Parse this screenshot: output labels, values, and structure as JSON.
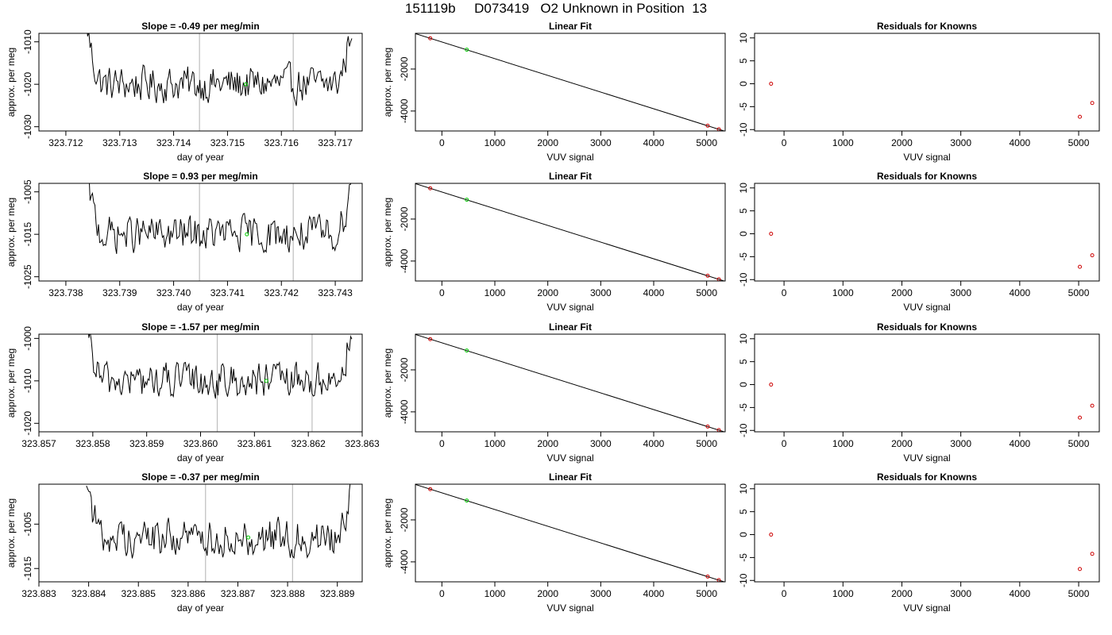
{
  "page_title": "151119b     D073419   O2 Unknown in Position  13",
  "chart_data": [
    {
      "type": "line",
      "title": "Slope =  -0.49  per meg/min",
      "xlabel": "day of year",
      "ylabel": "approx. per meg",
      "xlim": [
        323.7115,
        323.7175
      ],
      "ylim": [
        -1031,
        -1008
      ],
      "xticks": [
        "323.712",
        "323.713",
        "323.714",
        "323.715",
        "323.716",
        "323.717"
      ],
      "yticks": [
        "-1010",
        "-1020",
        "-1030"
      ],
      "vlines": [
        323.71448,
        323.71622
      ],
      "highlight_point": {
        "x": 323.71534,
        "y": -1020
      },
      "color_line": "#000000",
      "color_point": "#00cc00",
      "color_vline": "#bebebe"
    },
    {
      "type": "scatter",
      "title": "Linear Fit",
      "xlabel": "VUV signal",
      "ylabel": "approx. per meg",
      "xlim": [
        -500,
        5350
      ],
      "ylim": [
        -4950,
        -300
      ],
      "xticks": [
        "0",
        "1000",
        "2000",
        "3000",
        "4000",
        "5000"
      ],
      "yticks": [
        "-2000",
        "-4000"
      ],
      "points": [
        {
          "x": -220,
          "y": -537
        },
        {
          "x": 5020,
          "y": -4700
        },
        {
          "x": 5230,
          "y": -4870
        }
      ],
      "unknown_point": {
        "x": 470,
        "y": -1080
      },
      "fit": {
        "slope": -0.7953,
        "intercept": -712
      },
      "color_known": "#cc0000",
      "color_unknown": "#00cc00"
    },
    {
      "type": "scatter",
      "title": "Residuals for Knowns",
      "xlabel": "VUV signal",
      "ylabel": "",
      "xlim": [
        -500,
        5350
      ],
      "ylim": [
        -10.3,
        11
      ],
      "xticks": [
        "0",
        "1000",
        "2000",
        "3000",
        "4000",
        "5000"
      ],
      "yticks": [
        "10",
        "5",
        "0",
        "-5",
        "-10"
      ],
      "points": [
        {
          "x": -220,
          "y": 0
        },
        {
          "x": 5020,
          "y": -7.2
        },
        {
          "x": 5230,
          "y": -4.2
        }
      ],
      "color_known": "#cc0000"
    },
    {
      "type": "line",
      "title": "Slope =  0.93  per meg/min",
      "xlabel": "day of year",
      "ylabel": "approx. per meg",
      "xlim": [
        323.7375,
        323.7435
      ],
      "ylim": [
        -1026,
        -1003
      ],
      "xticks": [
        "323.738",
        "323.739",
        "323.740",
        "323.741",
        "323.742",
        "323.743"
      ],
      "yticks": [
        "-1005",
        "-1015",
        "-1025"
      ],
      "vlines": [
        323.74048,
        323.74222
      ],
      "highlight_point": {
        "x": 323.74136,
        "y": -1015
      },
      "color_line": "#000000",
      "color_point": "#00cc00",
      "color_vline": "#bebebe"
    },
    {
      "type": "scatter",
      "title": "Linear Fit",
      "xlabel": "VUV signal",
      "ylabel": "approx. per meg",
      "xlim": [
        -500,
        5350
      ],
      "ylim": [
        -4950,
        -300
      ],
      "xticks": [
        "0",
        "1000",
        "2000",
        "3000",
        "4000",
        "5000"
      ],
      "yticks": [
        "-2000",
        "-4000"
      ],
      "points": [
        {
          "x": -220,
          "y": -537
        },
        {
          "x": 5020,
          "y": -4700
        },
        {
          "x": 5230,
          "y": -4870
        }
      ],
      "unknown_point": {
        "x": 470,
        "y": -1080
      },
      "fit": {
        "slope": -0.7953,
        "intercept": -712
      },
      "color_known": "#cc0000",
      "color_unknown": "#00cc00"
    },
    {
      "type": "scatter",
      "title": "Residuals for Knowns",
      "xlabel": "VUV signal",
      "ylabel": "",
      "xlim": [
        -500,
        5350
      ],
      "ylim": [
        -10.3,
        11
      ],
      "xticks": [
        "0",
        "1000",
        "2000",
        "3000",
        "4000",
        "5000"
      ],
      "yticks": [
        "10",
        "5",
        "0",
        "-5",
        "-10"
      ],
      "points": [
        {
          "x": -220,
          "y": 0
        },
        {
          "x": 5020,
          "y": -7.2
        },
        {
          "x": 5230,
          "y": -4.7
        }
      ],
      "color_known": "#cc0000"
    },
    {
      "type": "line",
      "title": "Slope =  -1.57  per meg/min",
      "xlabel": "day of year",
      "ylabel": "approx. per meg",
      "xlim": [
        323.857,
        323.863
      ],
      "ylim": [
        -1022,
        -999
      ],
      "xticks": [
        "323.857",
        "323.858",
        "323.859",
        "323.860",
        "323.861",
        "323.862",
        "323.863"
      ],
      "yticks": [
        "-1000",
        "-1010",
        "-1020"
      ],
      "vlines": [
        323.86031,
        323.86207
      ],
      "highlight_point": {
        "x": 323.86122,
        "y": -1010
      },
      "color_line": "#000000",
      "color_point": "#00cc00",
      "color_vline": "#bebebe"
    },
    {
      "type": "scatter",
      "title": "Linear Fit",
      "xlabel": "VUV signal",
      "ylabel": "approx. per meg",
      "xlim": [
        -500,
        5350
      ],
      "ylim": [
        -4950,
        -300
      ],
      "xticks": [
        "0",
        "1000",
        "2000",
        "3000",
        "4000",
        "5000"
      ],
      "yticks": [
        "-2000",
        "-4000"
      ],
      "points": [
        {
          "x": -220,
          "y": -537
        },
        {
          "x": 5020,
          "y": -4700
        },
        {
          "x": 5230,
          "y": -4870
        }
      ],
      "unknown_point": {
        "x": 470,
        "y": -1080
      },
      "fit": {
        "slope": -0.7953,
        "intercept": -712
      },
      "color_known": "#cc0000",
      "color_unknown": "#00cc00"
    },
    {
      "type": "scatter",
      "title": "Residuals for Knowns",
      "xlabel": "VUV signal",
      "ylabel": "",
      "xlim": [
        -500,
        5350
      ],
      "ylim": [
        -10.3,
        11
      ],
      "xticks": [
        "0",
        "1000",
        "2000",
        "3000",
        "4000",
        "5000"
      ],
      "yticks": [
        "10",
        "5",
        "0",
        "-5",
        "-10"
      ],
      "points": [
        {
          "x": -220,
          "y": 0
        },
        {
          "x": 5020,
          "y": -7.2
        },
        {
          "x": 5230,
          "y": -4.6
        }
      ],
      "color_known": "#cc0000"
    },
    {
      "type": "line",
      "title": "Slope =  -0.37  per meg/min",
      "xlabel": "day of year",
      "ylabel": "approx. per meg",
      "xlim": [
        323.883,
        323.8895
      ],
      "ylim": [
        -1018,
        -996
      ],
      "xticks": [
        "323.883",
        "323.884",
        "323.885",
        "323.886",
        "323.887",
        "323.888",
        "323.889"
      ],
      "yticks": [
        "-1005",
        "-1015"
      ],
      "vlines": [
        323.88635,
        323.8881
      ],
      "highlight_point": {
        "x": 323.88721,
        "y": -1008
      },
      "color_line": "#000000",
      "color_point": "#00cc00",
      "color_vline": "#bebebe"
    },
    {
      "type": "scatter",
      "title": "Linear Fit",
      "xlabel": "VUV signal",
      "ylabel": "approx. per meg",
      "xlim": [
        -500,
        5350
      ],
      "ylim": [
        -4950,
        -300
      ],
      "xticks": [
        "0",
        "1000",
        "2000",
        "3000",
        "4000",
        "5000"
      ],
      "yticks": [
        "-2000",
        "-4000"
      ],
      "points": [
        {
          "x": -220,
          "y": -537
        },
        {
          "x": 5020,
          "y": -4700
        },
        {
          "x": 5230,
          "y": -4870
        }
      ],
      "unknown_point": {
        "x": 470,
        "y": -1080
      },
      "fit": {
        "slope": -0.7953,
        "intercept": -712
      },
      "color_known": "#cc0000",
      "color_unknown": "#00cc00"
    },
    {
      "type": "scatter",
      "title": "Residuals for Knowns",
      "xlabel": "VUV signal",
      "ylabel": "",
      "xlim": [
        -500,
        5350
      ],
      "ylim": [
        -10.3,
        11
      ],
      "xticks": [
        "0",
        "1000",
        "2000",
        "3000",
        "4000",
        "5000"
      ],
      "yticks": [
        "10",
        "5",
        "0",
        "-5",
        "-10"
      ],
      "points": [
        {
          "x": -220,
          "y": 0
        },
        {
          "x": 5020,
          "y": -7.5
        },
        {
          "x": 5230,
          "y": -4.2
        }
      ],
      "color_known": "#cc0000"
    }
  ]
}
